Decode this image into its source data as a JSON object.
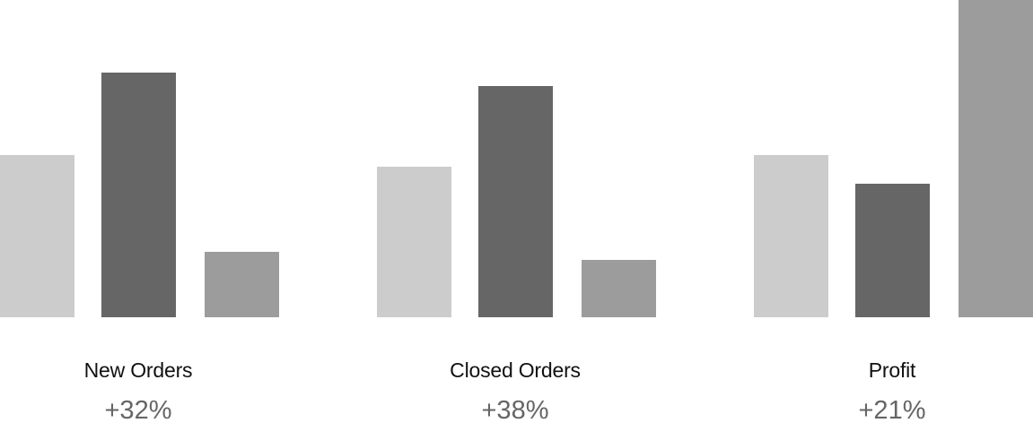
{
  "colors": {
    "light": "#cccccc",
    "dark": "#666666",
    "mid": "#9c9c9c",
    "label_text": "#111111",
    "value_text": "#666666"
  },
  "chart_data": [
    {
      "type": "bar",
      "title": "New Orders",
      "annotation": "+32%",
      "categories": [
        "",
        "",
        ""
      ],
      "values": [
        51,
        77,
        20.5
      ],
      "colors": [
        "#cccccc",
        "#666666",
        "#9c9c9c"
      ],
      "ylim": [
        0,
        100
      ],
      "grid": false
    },
    {
      "type": "bar",
      "title": "Closed Orders",
      "annotation": "+38%",
      "categories": [
        "",
        "",
        ""
      ],
      "values": [
        47.5,
        73,
        18
      ],
      "colors": [
        "#cccccc",
        "#666666",
        "#9c9c9c"
      ],
      "ylim": [
        0,
        100
      ],
      "grid": false
    },
    {
      "type": "bar",
      "title": "Profit",
      "annotation": "+21%",
      "categories": [
        "",
        "",
        ""
      ],
      "values": [
        51,
        42,
        100
      ],
      "colors": [
        "#cccccc",
        "#666666",
        "#9c9c9c"
      ],
      "ylim": [
        0,
        100
      ],
      "grid": false
    }
  ]
}
